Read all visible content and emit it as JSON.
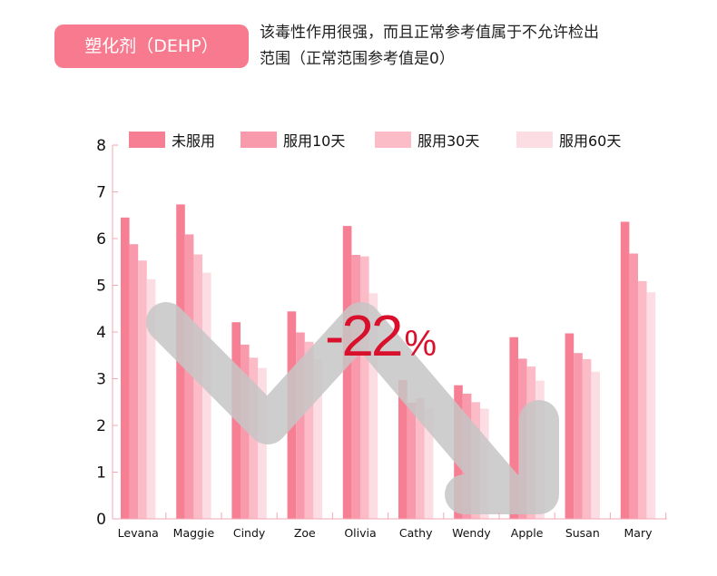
{
  "header": {
    "badge": "塑化剂（DEHP）",
    "description_line1": "该毒性作用很强，而且正常参考值属于不允许检出",
    "description_line2": "范围（正常范围参考值是0）"
  },
  "chart_data": {
    "type": "bar",
    "title": "",
    "xlabel": "",
    "ylabel": "",
    "ylim": [
      0,
      8
    ],
    "yticks": [
      "0",
      "1",
      "2",
      "3",
      "4",
      "5",
      "6",
      "7",
      "8"
    ],
    "legend_position": "top",
    "categories": [
      "Levana",
      "Maggie",
      "Cindy",
      "Zoe",
      "Olivia",
      "Cathy",
      "Wendy",
      "Apple",
      "Susan",
      "Mary"
    ],
    "series": [
      {
        "name": "未服用",
        "color": "#f67f93",
        "values": [
          6.45,
          6.73,
          4.21,
          4.44,
          6.27,
          2.97,
          2.86,
          3.89,
          3.97,
          6.36
        ]
      },
      {
        "name": "服用10天",
        "color": "#f89aab",
        "values": [
          5.88,
          6.09,
          3.73,
          3.99,
          5.65,
          2.49,
          2.68,
          3.43,
          3.55,
          5.68
        ]
      },
      {
        "name": "服用30天",
        "color": "#fbbcc8",
        "values": [
          5.53,
          5.66,
          3.45,
          3.79,
          5.62,
          2.58,
          2.5,
          3.26,
          3.42,
          5.09
        ]
      },
      {
        "name": "服用60天",
        "color": "#fcdde3",
        "values": [
          5.13,
          5.27,
          3.23,
          3.42,
          4.83,
          2.36,
          2.36,
          2.96,
          3.15,
          4.85
        ]
      }
    ],
    "annotation": {
      "text": "-22",
      "suffix": "%",
      "color": "#d9102c"
    }
  }
}
